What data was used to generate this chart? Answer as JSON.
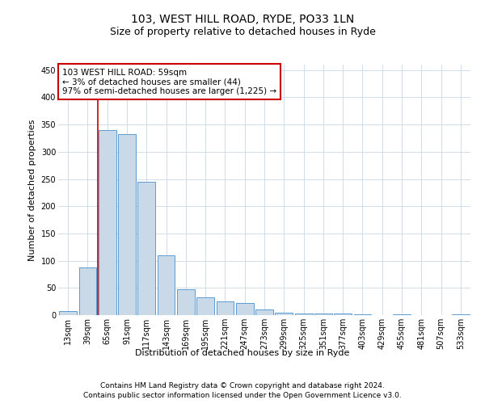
{
  "title": "103, WEST HILL ROAD, RYDE, PO33 1LN",
  "subtitle": "Size of property relative to detached houses in Ryde",
  "xlabel": "Distribution of detached houses by size in Ryde",
  "ylabel": "Number of detached properties",
  "footer_line1": "Contains HM Land Registry data © Crown copyright and database right 2024.",
  "footer_line2": "Contains public sector information licensed under the Open Government Licence v3.0.",
  "annotation_line1": "103 WEST HILL ROAD: 59sqm",
  "annotation_line2": "← 3% of detached houses are smaller (44)",
  "annotation_line3": "97% of semi-detached houses are larger (1,225) →",
  "bar_labels": [
    "13sqm",
    "39sqm",
    "65sqm",
    "91sqm",
    "117sqm",
    "143sqm",
    "169sqm",
    "195sqm",
    "221sqm",
    "247sqm",
    "273sqm",
    "299sqm",
    "325sqm",
    "351sqm",
    "377sqm",
    "403sqm",
    "429sqm",
    "455sqm",
    "481sqm",
    "507sqm",
    "533sqm"
  ],
  "bar_values": [
    7,
    88,
    340,
    333,
    245,
    110,
    48,
    32,
    25,
    22,
    11,
    5,
    3,
    3,
    3,
    2,
    0,
    2,
    0,
    0,
    2
  ],
  "bar_color": "#c9d9e8",
  "bar_edge_color": "#5b9bd5",
  "vline_color": "#cc0000",
  "ylim": [
    0,
    460
  ],
  "yticks": [
    0,
    50,
    100,
    150,
    200,
    250,
    300,
    350,
    400,
    450
  ],
  "annotation_box_color": "#cc0000",
  "bg_color": "#ffffff",
  "grid_color": "#c8d8e8",
  "title_fontsize": 10,
  "subtitle_fontsize": 9,
  "ylabel_fontsize": 8,
  "xlabel_fontsize": 8,
  "tick_fontsize": 7,
  "annotation_fontsize": 7.5,
  "footer_fontsize": 6.5
}
